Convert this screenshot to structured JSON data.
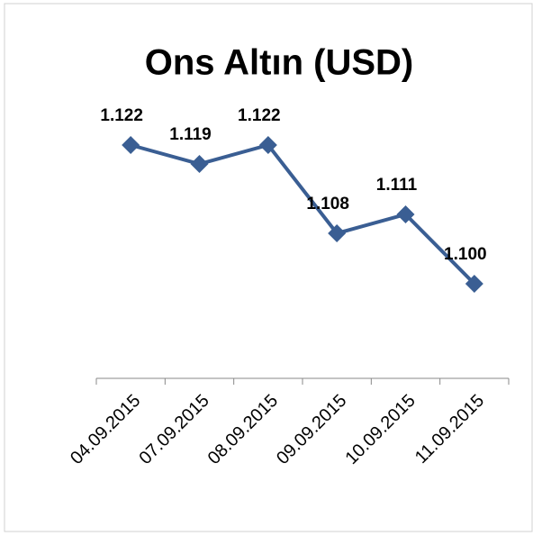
{
  "chart_data": {
    "type": "line",
    "title": "Ons Altın (USD)",
    "categories": [
      "04.09.2015",
      "07.09.2015",
      "08.09.2015",
      "09.09.2015",
      "10.09.2015",
      "11.09.2015"
    ],
    "series": [
      {
        "name": "Ons Altın",
        "color": "#3a5e93",
        "values": [
          1122,
          1119,
          1122,
          1108,
          1111,
          1100
        ],
        "value_labels": [
          "1.122",
          "1.119",
          "1.122",
          "1.108",
          "1.111",
          "1.100"
        ]
      }
    ],
    "ylim": [
      1085,
      1135
    ]
  }
}
